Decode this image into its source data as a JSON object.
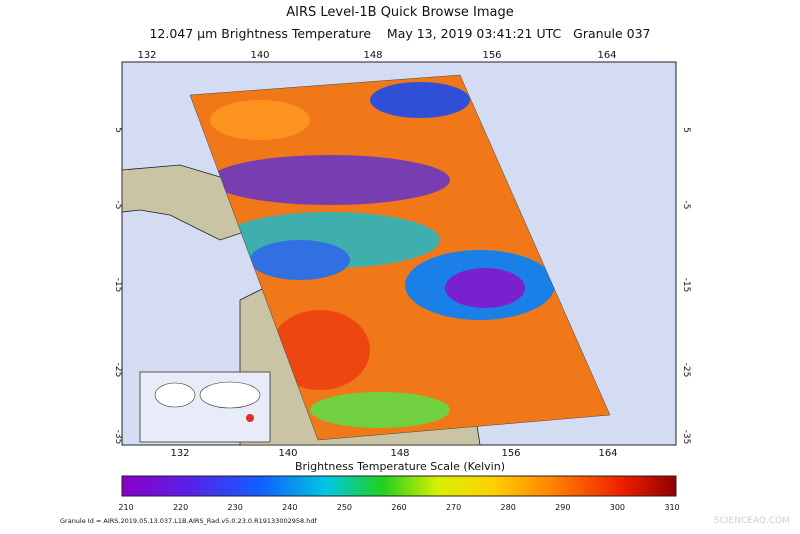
{
  "header": {
    "title": "AIRS Level-1B Quick Browse Image",
    "subtitle": "12.047 μm Brightness Temperature    May 13, 2019 03:41:21 UTC   Granule 037"
  },
  "map": {
    "lon_labels_top": [
      "132",
      "140",
      "148",
      "156",
      "164"
    ],
    "lon_labels_bottom": [
      "132",
      "140",
      "148",
      "156",
      "164"
    ],
    "lat_labels_left": [
      "5",
      "-5",
      "-15",
      "-25",
      "-35"
    ],
    "lat_labels_right": [
      "5",
      "-5",
      "-15",
      "-25",
      "-35"
    ]
  },
  "colorbar": {
    "title": "Brightness Temperature Scale (Kelvin)",
    "ticks": [
      "210",
      "220",
      "230",
      "240",
      "250",
      "260",
      "270",
      "280",
      "290",
      "300",
      "310"
    ]
  },
  "footer": {
    "granule_id": "Granule Id = AIRS.2019.05.13.037.L1B.AIRS_Rad.v5.0.23.0.R19133002958.hdf",
    "watermark": "SCIENCEAQ.COM"
  }
}
